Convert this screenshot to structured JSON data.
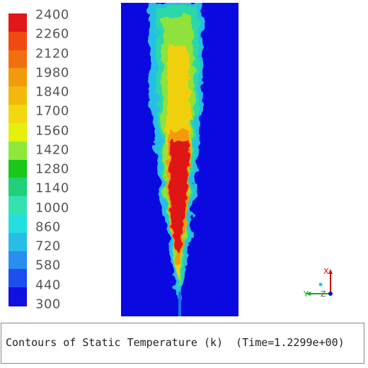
{
  "caption": "Contours of Static Temperature (k)  (Time=1.2299e+00)",
  "legend": {
    "levels": [
      "2400",
      "2260",
      "2120",
      "1980",
      "1840",
      "1700",
      "1560",
      "1420",
      "1280",
      "1140",
      "1000",
      "860",
      "720",
      "580",
      "440",
      "300"
    ],
    "colors": [
      "#e21818",
      "#ef4a10",
      "#f07010",
      "#f39a0c",
      "#f2b90c",
      "#f2d80c",
      "#e4f00c",
      "#8ee83a",
      "#1ac81a",
      "#20d07a",
      "#34e2b0",
      "#22e0e0",
      "#28bce8",
      "#2a8ef0",
      "#1c4ef0",
      "#1010e0"
    ]
  },
  "domain": {
    "background": "#0a0ae0"
  },
  "axes": {
    "x_label": "X",
    "y_label": "Y",
    "z_label": "Z"
  }
}
